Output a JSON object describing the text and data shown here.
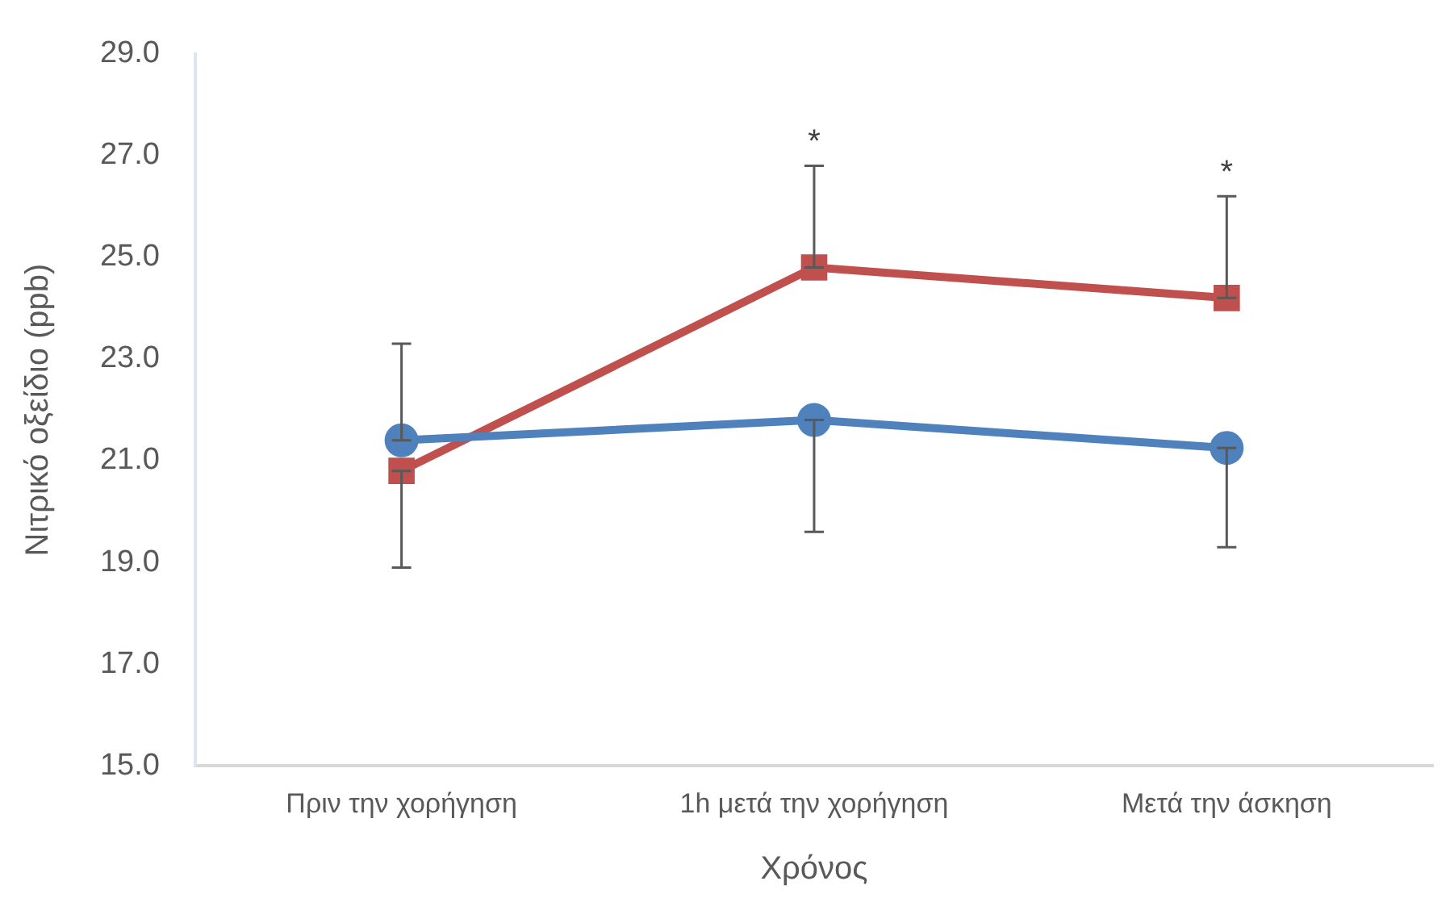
{
  "chart_data": {
    "type": "line",
    "xlabel": "Χρόνος",
    "ylabel": "Νιτρικό οξείδιο (ppb)",
    "categories": [
      "Πριν την χορήγηση",
      "1h μετά την χορήγηση",
      "Μετά την άσκηση"
    ],
    "series": [
      {
        "color": "#4f81bd",
        "marker": "circle",
        "values": [
          21.4,
          21.8,
          21.25
        ],
        "errors": [
          [
            21.4,
            23.3
          ],
          [
            19.6,
            21.8
          ],
          [
            19.3,
            21.25
          ]
        ]
      },
      {
        "color": "#c0504d",
        "marker": "square",
        "values": [
          20.8,
          24.8,
          24.2
        ],
        "errors": [
          [
            18.9,
            20.8
          ],
          [
            24.8,
            26.8
          ],
          [
            24.2,
            26.2
          ]
        ]
      }
    ],
    "ylim": [
      15,
      29
    ],
    "yticks": [
      {
        "value": 15,
        "label": "15.0"
      },
      {
        "value": 17,
        "label": "17.0"
      },
      {
        "value": 19,
        "label": "19.0"
      },
      {
        "value": 21,
        "label": "21.0"
      },
      {
        "value": 23,
        "label": "23.0"
      },
      {
        "value": 25,
        "label": "25.0"
      },
      {
        "value": 27,
        "label": "27.0"
      },
      {
        "value": 29,
        "label": "29.0"
      }
    ],
    "annotations": [
      {
        "text": "*",
        "x": "1h μετά την χορήγηση",
        "y": 26.8
      },
      {
        "text": "*",
        "x": "Μετά την άσκηση",
        "y": 26.2
      }
    ],
    "grid": false,
    "legend": false,
    "line_style": "solid"
  }
}
